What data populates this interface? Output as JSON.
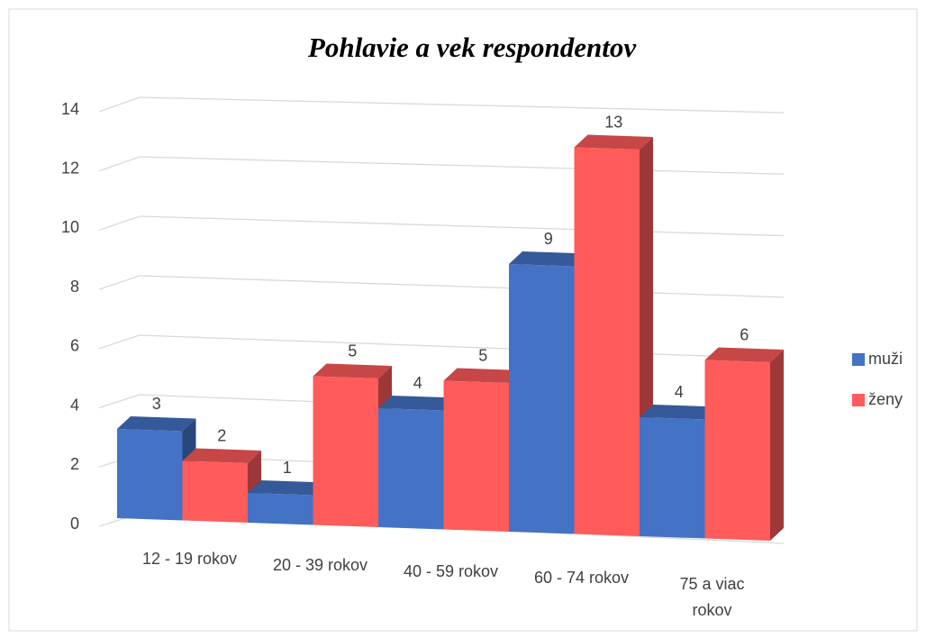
{
  "chart_data": {
    "type": "bar3d",
    "title": "Pohlavie a vek respondentov",
    "categories": [
      "12 - 19 rokov",
      "20 - 39 rokov",
      "40 - 59 rokov",
      "60 - 74 rokov",
      "75 a viac rokov"
    ],
    "series": [
      {
        "name": "muži",
        "color": "#4472c4",
        "values": [
          3,
          1,
          4,
          9,
          4
        ]
      },
      {
        "name": "ženy",
        "color": "#ff5b5b",
        "values": [
          2,
          5,
          5,
          13,
          6
        ]
      }
    ],
    "ylim": [
      0,
      14
    ],
    "yticks": [
      0,
      2,
      4,
      6,
      8,
      10,
      12,
      14
    ],
    "grid": true,
    "legend": "right"
  }
}
